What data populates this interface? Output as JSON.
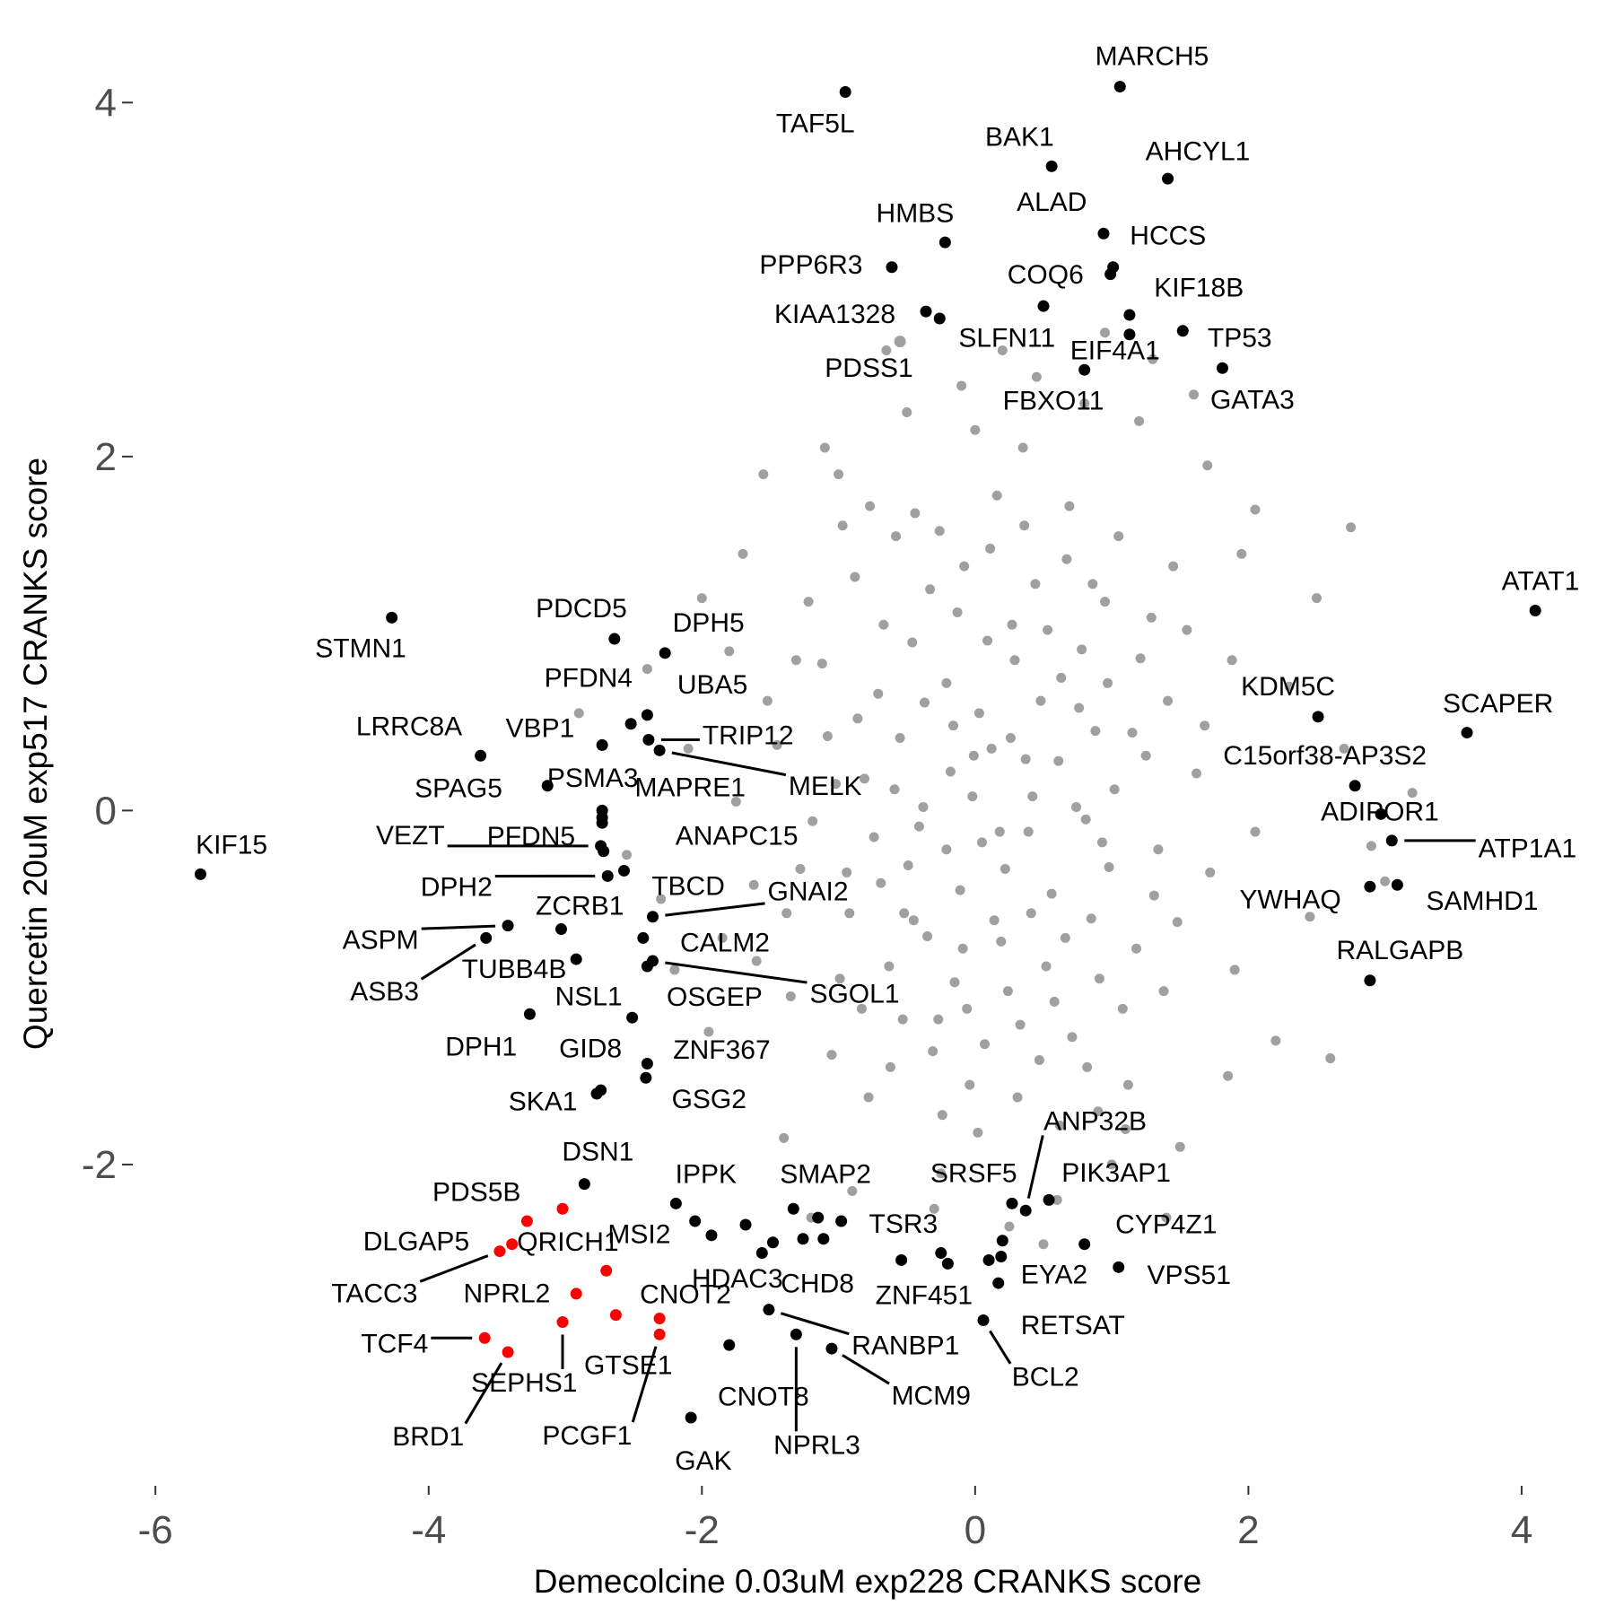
{
  "chart_data": {
    "type": "scatter",
    "xlabel": "Demecolcine 0.03uM exp228 CRANKS score",
    "ylabel": "Quercetin 20uM exp517 CRANKS score",
    "xlim": [
      -6.1,
      4.25
    ],
    "ylim": [
      -3.8,
      4.25
    ],
    "xticks": [
      -6,
      -4,
      -2,
      0,
      2,
      4
    ],
    "yticks": [
      -2,
      0,
      2,
      4
    ],
    "grid": false,
    "series": [
      {
        "color": "#a0a0a0",
        "x": [
          0.12,
          -0.45,
          0.78,
          -1.02,
          0.33,
          1.15,
          -0.67,
          0.05,
          -0.21,
          0.56,
          -1.28,
          0.91,
          -0.08,
          0.42,
          -0.83,
          1.34,
          0.19,
          -0.55,
          0.67,
          -0.31,
          1.02,
          -1.12,
          0.27,
          -0.74,
          0.85,
          -0.15,
          1.21,
          -0.92,
          0.48,
          -0.38,
          0.03,
          0.71,
          -1.45,
          1.48,
          -0.62,
          0.36,
          -0.04,
          0.95,
          -0.88,
          0.22,
          -1.6,
          1.62,
          -0.18,
          0.61,
          -0.49,
          0.09,
          -0.99,
          1.08,
          0.31,
          -0.26,
          0.74,
          -0.71,
          1.29,
          -1.19,
          0.52,
          -0.35,
          0.16,
          -0.58,
          0.98,
          -0.11,
          0.44,
          -0.81,
          1.41,
          -1.35,
          0.26,
          -0.46,
          0.82,
          -0.02,
          0.63,
          -0.94,
          1.18,
          -0.27,
          0.39,
          -0.63,
          0.07,
          1.55,
          -1.52,
          0.88,
          -0.13,
          0.58,
          -0.77,
          1.05,
          -1.05,
          0.29,
          -0.41,
          0.93,
          -0.21,
          0.47,
          -1.22,
          1.72,
          0.14,
          -0.53,
          0.69,
          -0.09,
          1.25,
          -0.86,
          0.37,
          -0.33,
          0.81,
          -1.38,
          0.02,
          1.12,
          -0.69,
          0.53,
          -0.16,
          1.38,
          -1.75,
          0.24,
          -0.44,
          0.76,
          -1.08,
          1.88,
          -0.01,
          0.66,
          -0.59,
          0.11,
          -1.62,
          1.31,
          -0.24,
          0.86,
          -0.97,
          0.41,
          -0.37,
          1.68,
          -1.31,
          0.18,
          -0.06,
          0.97,
          -0.78,
          0.62,
          -0.52,
          1.45,
          -1.85,
          2.05,
          -2.1,
          0.35,
          -0.25,
          1.95,
          -1.95,
          2.3,
          -2.2,
          0.8,
          -1.1,
          1.5,
          -1.4,
          2.45,
          -2.4,
          1.2,
          0.2,
          -0.9,
          2.7,
          -2.55,
          1.7,
          -1.7,
          2.2,
          -0.5,
          0.6,
          2.9,
          1.85,
          -2.0,
          -1.2,
          1.3,
          3.0,
          2.5,
          -2.9,
          0.95,
          -0.1,
          1.4,
          -1.55,
          2.75,
          -0.65,
          0.5,
          2.6,
          1.6,
          0.25,
          -1.0,
          0.0,
          1.0,
          3.2,
          2.05,
          -2.3,
          -1.8,
          1.9,
          -0.3,
          0.45,
          1.1,
          0.9
        ],
        "y": [
          0.35,
          -0.62,
          0.91,
          0.15,
          -1.21,
          0.44,
          1.05,
          -0.18,
          0.72,
          -0.47,
          -0.33,
          -0.95,
          1.38,
          0.08,
          -1.12,
          -0.22,
          -0.74,
          0.41,
          1.42,
          -1.36,
          0.12,
          0.83,
          1.05,
          -0.15,
          -0.61,
          -0.97,
          0.86,
          -0.58,
          0.62,
          0.02,
          0.55,
          -1.28,
          0.37,
          -0.63,
          -1.45,
          1.61,
          -1.55,
          1.18,
          1.32,
          -0.33,
          -0.85,
          0.21,
          0.22,
          0.28,
          -0.31,
          0.96,
          -0.95,
          -1.12,
          -1.62,
          1.58,
          0.02,
          0.66,
          1.09,
          -0.06,
          -0.88,
          -0.71,
          1.78,
          1.55,
          -0.32,
          -0.45,
          1.28,
          0.18,
          0.62,
          -1.05,
          0.41,
          0.95,
          -1.45,
          0.08,
          0.75,
          -0.35,
          -0.78,
          -1.18,
          -0.12,
          -0.88,
          -1.32,
          1.02,
          0.62,
          0.45,
          1.12,
          -1.08,
          1.72,
          1.55,
          -1.38,
          0.85,
          -0.09,
          -0.18,
          -0.22,
          -1.41,
          1.18,
          -0.35,
          -0.62,
          -1.18,
          1.72,
          -0.78,
          0.31,
          0.52,
          0.29,
          1.25,
          -0.05,
          -0.58,
          -1.82,
          -1.55,
          -0.41,
          1.02,
          0.48,
          -1.02,
          0.05,
          -1.02,
          1.68,
          0.58,
          0.42,
          0.85,
          0.31,
          -0.72,
          0.12,
          1.48,
          -0.42,
          -0.48,
          -1.72,
          1.28,
          1.61,
          -0.58,
          0.61,
          0.48,
          0.85,
          -0.12,
          -1.12,
          0.72,
          -1.62,
          -1.78,
          -0.58,
          1.38,
          -0.72,
          -0.12,
          0.35,
          2.05,
          -2.05,
          1.45,
          -1.25,
          0.7,
          -0.9,
          2.3,
          2.05,
          -1.9,
          -1.85,
          -0.6,
          0.8,
          2.2,
          2.6,
          -2.15,
          0.35,
          -0.25,
          1.95,
          1.45,
          -1.3,
          2.25,
          -2.2,
          -0.2,
          -1.5,
          1.2,
          -2.3,
          2.55,
          -0.4,
          1.2,
          0.55,
          2.7,
          2.4,
          -2.3,
          1.9,
          1.6,
          2.6,
          -2.45,
          -1.4,
          2.35,
          -2.35,
          1.9,
          2.15,
          -2.0,
          0.1,
          1.7,
          -0.5,
          0.9,
          -0.9,
          -2.25,
          2.45,
          -1.8,
          -1.7
        ]
      },
      {
        "color": "#a0a0a0",
        "x": [
          -0.55
        ],
        "y": [
          2.65
        ],
        "labels": [
          "PDSS1"
        ]
      },
      {
        "color": "#000000",
        "x": [
          1.06,
          -0.95,
          0.56,
          1.41,
          0.94,
          1.01,
          0.99,
          -0.22,
          -0.61,
          0.5,
          -0.36,
          -0.26,
          1.13,
          1.13,
          1.52,
          0.8,
          1.81,
          4.1,
          -4.27,
          -2.64,
          -2.27,
          2.51,
          3.6,
          -2.4,
          -2.52,
          -3.62,
          -2.73,
          -2.39,
          -2.31,
          2.78,
          -3.13,
          -2.73,
          -2.73,
          2.97,
          3.05,
          -2.73,
          -2.74,
          -2.72,
          -5.67,
          -2.69,
          -2.57,
          2.89,
          3.09,
          -2.36,
          -3.03,
          -3.42,
          -3.58,
          -2.92,
          -2.43,
          -2.36,
          -2.4,
          2.89,
          -2.51,
          -3.26,
          -2.4,
          -2.74,
          -2.77,
          -2.41,
          -2.86,
          -2.19,
          -1.33,
          0.27,
          0.37,
          0.54,
          -0.98,
          -2.05,
          -1.93,
          -1.48,
          0.8,
          1.05,
          0.2,
          -0.2,
          0.17,
          0.06,
          -1.51,
          -1.31,
          -1.05,
          -1.8,
          -2.08,
          -1.68,
          -1.56,
          -1.26,
          -1.15,
          -0.54,
          -0.25,
          0.1,
          0.19,
          -1.11
        ],
        "y": [
          4.09,
          4.06,
          3.64,
          3.57,
          3.26,
          3.07,
          3.03,
          3.21,
          3.07,
          2.85,
          2.82,
          2.78,
          2.8,
          2.69,
          2.71,
          2.49,
          2.5,
          1.13,
          1.09,
          0.97,
          0.89,
          0.53,
          0.44,
          0.54,
          0.49,
          0.31,
          0.37,
          0.4,
          0.34,
          0.14,
          0.14,
          0.0,
          -0.04,
          -0.02,
          -0.17,
          -0.07,
          -0.2,
          -0.23,
          -0.36,
          -0.37,
          -0.34,
          -0.43,
          -0.42,
          -0.6,
          -0.67,
          -0.65,
          -0.72,
          -0.84,
          -0.72,
          -0.85,
          -0.88,
          -0.96,
          -1.17,
          -1.15,
          -1.43,
          -1.58,
          -1.6,
          -1.51,
          -2.11,
          -2.22,
          -2.25,
          -2.22,
          -2.26,
          -2.2,
          -2.32,
          -2.32,
          -2.4,
          -2.44,
          -2.45,
          -2.58,
          -2.43,
          -2.56,
          -2.67,
          -2.88,
          -2.82,
          -2.96,
          -3.04,
          -3.02,
          -3.43,
          -2.34,
          -2.5,
          -2.42,
          -2.3,
          -2.54,
          -2.5,
          -2.54,
          -2.52,
          -2.42
        ],
        "labels": [
          "MARCH5",
          "TAF5L",
          "BAK1",
          "AHCYL1",
          "ALAD",
          "HCCS",
          null,
          "HMBS",
          "PPP6R3",
          "COQ6",
          "KIAA1328",
          "SLFN11",
          "KIF18B",
          "EIF4A1",
          "TP53",
          "FBXO11",
          "GATA3",
          "ATAT1",
          "STMN1",
          "PDCD5",
          "DPH5",
          "KDM5C",
          "SCAPER",
          "UBA5",
          "PFDN4",
          "LRRC8A",
          "VBP1",
          "TRIP12",
          "MELK",
          "C15orf38-AP3S2",
          "SPAG5",
          "PSMA3",
          "MAPRE1",
          "ADIPOR1",
          "ATP1A1",
          "ANAPC15",
          "VEZT",
          "PFDN5",
          "KIF15",
          "DPH2",
          "TBCD",
          "YWHAQ",
          "SAMHD1",
          "GNAI2",
          "ZCRB1",
          "ASPM",
          "ASB3",
          "TUBB4B",
          "CALM2",
          "SGOL1",
          "OSGEP",
          "RALGAPB",
          "NSL1",
          "DPH1",
          "ZNF367",
          "GID8",
          "SKA1",
          "GSG2",
          "DSN1",
          "IPPK",
          "SMAP2",
          "SRSF5",
          "ANP32B",
          "PIK3AP1",
          "TSR3",
          "MSI2",
          "HDAC3",
          "CHD8",
          "CYP4Z1",
          "VPS51",
          "EYA2",
          "ZNF451",
          "RETSAT",
          "BCL2",
          "RANBP1",
          "NPRL3",
          "MCM9",
          "CNOT8",
          "GAK",
          null,
          null,
          null,
          null,
          null,
          null,
          null,
          null,
          null
        ]
      },
      {
        "color": "#ff0000",
        "x": [
          -3.02,
          -3.28,
          -3.39,
          -3.48,
          -2.7,
          -2.92,
          -2.31,
          -2.63,
          -3.02,
          -3.59,
          -3.42,
          -2.31
        ],
        "y": [
          -2.25,
          -2.32,
          -2.45,
          -2.49,
          -2.6,
          -2.73,
          -2.87,
          -2.85,
          -2.89,
          -2.98,
          -3.06,
          -2.96
        ],
        "labels": [
          "PDS5B",
          "DLGAP5",
          "QRICH1",
          "TACC3",
          null,
          "NPRL2",
          "CNOT2",
          "GTSE1",
          "SEPHS1",
          "TCF4",
          "BRD1",
          "PCGF1"
        ]
      }
    ]
  }
}
